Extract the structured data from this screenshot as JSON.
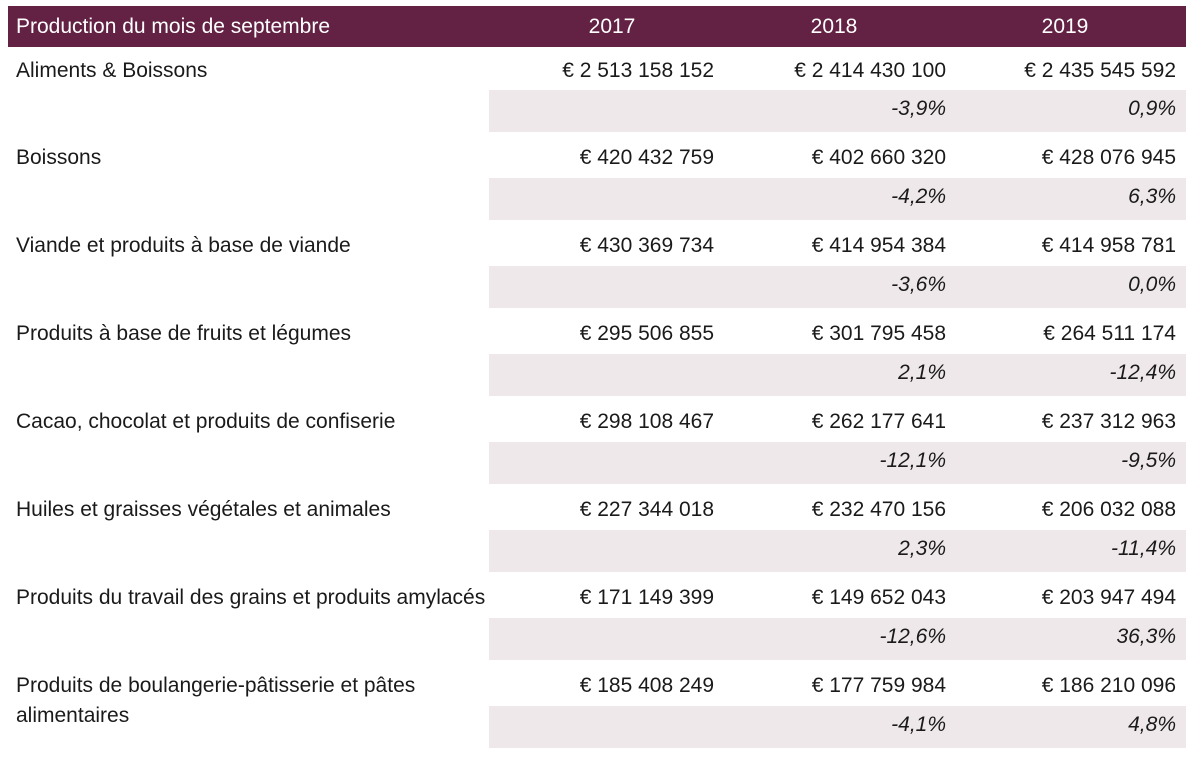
{
  "header": {
    "label": "Production du mois de septembre",
    "years": [
      "2017",
      "2018",
      "2019"
    ]
  },
  "rows": [
    {
      "label": "Aliments & Boissons",
      "values": [
        "€ 2 513 158 152",
        "€ 2 414 430 100",
        "€ 2 435 545 592"
      ],
      "changes": [
        "-3,9%",
        "0,9%"
      ]
    },
    {
      "label": "Boissons",
      "values": [
        "€ 420 432 759",
        "€ 402 660 320",
        "€ 428 076 945"
      ],
      "changes": [
        "-4,2%",
        "6,3%"
      ]
    },
    {
      "label": "Viande et produits à base de viande",
      "values": [
        "€ 430 369 734",
        "€ 414 954 384",
        "€ 414 958 781"
      ],
      "changes": [
        "-3,6%",
        "0,0%"
      ]
    },
    {
      "label": "Produits à base de fruits et légumes",
      "values": [
        "€ 295 506 855",
        "€ 301 795 458",
        "€ 264 511 174"
      ],
      "changes": [
        "2,1%",
        "-12,4%"
      ]
    },
    {
      "label": "Cacao, chocolat et produits de confiserie",
      "values": [
        "€ 298 108 467",
        "€ 262 177 641",
        "€ 237 312 963"
      ],
      "changes": [
        "-12,1%",
        "-9,5%"
      ]
    },
    {
      "label": "Huiles et graisses végétales et animales",
      "values": [
        "€ 227 344 018",
        "€ 232 470 156",
        "€ 206 032 088"
      ],
      "changes": [
        "2,3%",
        "-11,4%"
      ]
    },
    {
      "label": "Produits du travail des grains et produits amylacés",
      "values": [
        "€ 171 149 399",
        "€ 149 652 043",
        "€ 203 947 494"
      ],
      "changes": [
        "-12,6%",
        "36,3%"
      ]
    },
    {
      "label": "Produits de boulangerie-pâtisserie et pâtes alimentaires",
      "values": [
        "€ 185 408 249",
        "€ 177 759 984",
        "€ 186 210 096"
      ],
      "changes": [
        "-4,1%",
        "4,8%"
      ]
    }
  ]
}
